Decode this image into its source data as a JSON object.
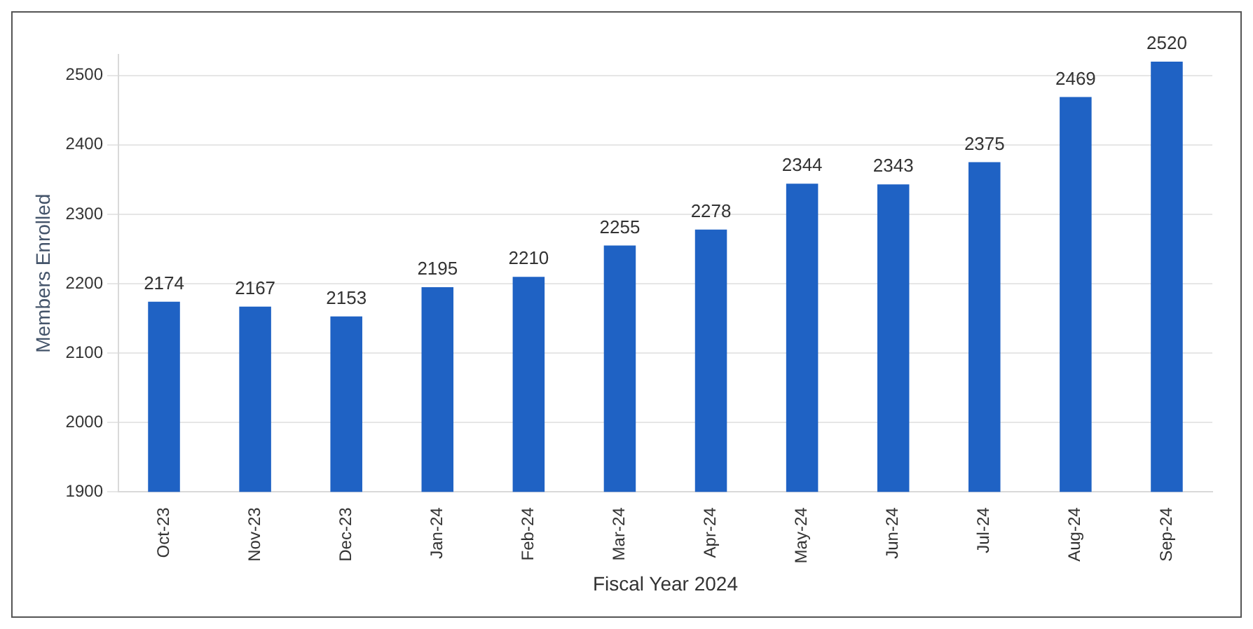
{
  "chart_data": {
    "type": "bar",
    "xlabel": "Fiscal Year 2024",
    "ylabel": "Members Enrolled",
    "categories": [
      "Oct-23",
      "Nov-23",
      "Dec-23",
      "Jan-24",
      "Feb-24",
      "Mar-24",
      "Apr-24",
      "May-24",
      "Jun-24",
      "Jul-24",
      "Aug-24",
      "Sep-24"
    ],
    "values": [
      2174,
      2167,
      2153,
      2195,
      2210,
      2255,
      2278,
      2344,
      2343,
      2375,
      2469,
      2520
    ],
    "color": "#1f62c4",
    "ylim": [
      1900,
      2530
    ],
    "yticks": [
      1900,
      2000,
      2100,
      2200,
      2300,
      2400,
      2500
    ],
    "grid": "y",
    "data_labels": true
  }
}
